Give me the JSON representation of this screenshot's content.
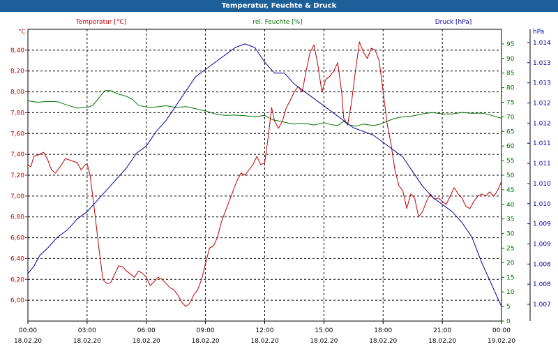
{
  "window": {
    "title": "Temperatur, Feuchte & Druck"
  },
  "colors": {
    "temperature": "#c00000",
    "humidity": "#007000",
    "pressure": "#000099",
    "title_bar": "#1d5f99"
  },
  "chart_data": {
    "type": "line",
    "title": "Temperatur, Feuchte & Druck",
    "grid": true,
    "x_ticks": [
      {
        "time": "00:00",
        "date": "18.02.20"
      },
      {
        "time": "03:00",
        "date": "18.02.20"
      },
      {
        "time": "06:00",
        "date": "18.02.20"
      },
      {
        "time": "09:00",
        "date": "18.02.20"
      },
      {
        "time": "12:00",
        "date": "18.02.20"
      },
      {
        "time": "15:00",
        "date": "18.02.20"
      },
      {
        "time": "18:00",
        "date": "18.02.20"
      },
      {
        "time": "21:00",
        "date": "18.02.20"
      },
      {
        "time": "00:00",
        "date": "19.02.20"
      }
    ],
    "x_range_hours": [
      0,
      24
    ],
    "axes": {
      "temperature": {
        "label": "Temperatur [°C]",
        "unit": "°C",
        "range": [
          5.8,
          8.6
        ],
        "ticks": [
          "6,00",
          "6,20",
          "6,40",
          "6,60",
          "6,80",
          "7,00",
          "7,20",
          "7,40",
          "7,60",
          "7,80",
          "8,00",
          "8,20",
          "8,40"
        ]
      },
      "humidity": {
        "label": "rel. Feuchte [%]",
        "unit": "%",
        "range": [
          0,
          100
        ],
        "ticks": [
          "0",
          "5",
          "10",
          "15",
          "20",
          "25",
          "30",
          "35",
          "40",
          "45",
          "50",
          "55",
          "60",
          "65",
          "70",
          "75",
          "80",
          "85",
          "90",
          "95"
        ]
      },
      "pressure": {
        "label": "Druck [hPa]",
        "unit": "hPa",
        "range": [
          1006.5,
          1014.5
        ],
        "ticks": [
          "1.007",
          "1.008",
          "1.008",
          "1.009",
          "1.009",
          "1.010",
          "1.010",
          "1.011",
          "1.011",
          "1.012",
          "1.012",
          "1.013",
          "1.013",
          "1.014"
        ]
      }
    },
    "series": [
      {
        "name": "Temperatur [°C]",
        "axis": "temperature",
        "points": [
          [
            0,
            7.3
          ],
          [
            0.15,
            7.28
          ],
          [
            0.3,
            7.38
          ],
          [
            0.6,
            7.4
          ],
          [
            0.8,
            7.42
          ],
          [
            1.0,
            7.35
          ],
          [
            1.2,
            7.25
          ],
          [
            1.4,
            7.22
          ],
          [
            1.7,
            7.3
          ],
          [
            1.9,
            7.36
          ],
          [
            2.2,
            7.34
          ],
          [
            2.5,
            7.32
          ],
          [
            2.7,
            7.25
          ],
          [
            2.9,
            7.3
          ],
          [
            3.0,
            7.31
          ],
          [
            3.15,
            7.2
          ],
          [
            3.35,
            6.9
          ],
          [
            3.6,
            6.5
          ],
          [
            3.8,
            6.2
          ],
          [
            4.0,
            6.16
          ],
          [
            4.2,
            6.17
          ],
          [
            4.4,
            6.25
          ],
          [
            4.6,
            6.33
          ],
          [
            4.8,
            6.32
          ],
          [
            5.0,
            6.28
          ],
          [
            5.2,
            6.25
          ],
          [
            5.4,
            6.22
          ],
          [
            5.6,
            6.28
          ],
          [
            5.8,
            6.26
          ],
          [
            6.0,
            6.22
          ],
          [
            6.2,
            6.14
          ],
          [
            6.4,
            6.18
          ],
          [
            6.6,
            6.22
          ],
          [
            6.8,
            6.2
          ],
          [
            7.0,
            6.16
          ],
          [
            7.2,
            6.12
          ],
          [
            7.4,
            6.1
          ],
          [
            7.6,
            6.05
          ],
          [
            7.8,
            5.98
          ],
          [
            8.0,
            5.94
          ],
          [
            8.2,
            5.97
          ],
          [
            8.4,
            6.05
          ],
          [
            8.6,
            6.1
          ],
          [
            8.8,
            6.2
          ],
          [
            9.0,
            6.35
          ],
          [
            9.2,
            6.5
          ],
          [
            9.4,
            6.52
          ],
          [
            9.6,
            6.6
          ],
          [
            9.8,
            6.75
          ],
          [
            10.0,
            6.85
          ],
          [
            10.2,
            6.95
          ],
          [
            10.4,
            7.05
          ],
          [
            10.6,
            7.15
          ],
          [
            10.8,
            7.22
          ],
          [
            11.0,
            7.2
          ],
          [
            11.2,
            7.25
          ],
          [
            11.4,
            7.3
          ],
          [
            11.6,
            7.38
          ],
          [
            11.8,
            7.3
          ],
          [
            12.0,
            7.32
          ],
          [
            12.2,
            7.6
          ],
          [
            12.35,
            7.85
          ],
          [
            12.5,
            7.72
          ],
          [
            12.7,
            7.65
          ],
          [
            12.9,
            7.72
          ],
          [
            13.1,
            7.85
          ],
          [
            13.3,
            7.92
          ],
          [
            13.5,
            8.0
          ],
          [
            13.7,
            8.05
          ],
          [
            13.9,
            8.0
          ],
          [
            14.1,
            8.2
          ],
          [
            14.3,
            8.38
          ],
          [
            14.5,
            8.45
          ],
          [
            14.7,
            8.25
          ],
          [
            14.9,
            8.0
          ],
          [
            15.1,
            8.12
          ],
          [
            15.3,
            8.15
          ],
          [
            15.5,
            8.2
          ],
          [
            15.7,
            8.28
          ],
          [
            15.9,
            8.0
          ],
          [
            16.0,
            7.75
          ],
          [
            16.2,
            7.68
          ],
          [
            16.4,
            7.9
          ],
          [
            16.6,
            8.2
          ],
          [
            16.8,
            8.48
          ],
          [
            17.0,
            8.38
          ],
          [
            17.2,
            8.32
          ],
          [
            17.4,
            8.42
          ],
          [
            17.6,
            8.4
          ],
          [
            17.8,
            8.3
          ],
          [
            18.0,
            8.0
          ],
          [
            18.2,
            7.7
          ],
          [
            18.4,
            7.5
          ],
          [
            18.6,
            7.25
          ],
          [
            18.8,
            7.1
          ],
          [
            19.0,
            7.05
          ],
          [
            19.2,
            6.88
          ],
          [
            19.4,
            7.02
          ],
          [
            19.6,
            6.98
          ],
          [
            19.8,
            6.8
          ],
          [
            20.0,
            6.85
          ],
          [
            20.2,
            6.95
          ],
          [
            20.4,
            7.02
          ],
          [
            20.6,
            6.97
          ],
          [
            20.8,
            6.98
          ],
          [
            21.0,
            6.95
          ],
          [
            21.2,
            6.92
          ],
          [
            21.4,
            7.0
          ],
          [
            21.6,
            7.08
          ],
          [
            21.8,
            7.02
          ],
          [
            22.0,
            6.98
          ],
          [
            22.2,
            6.9
          ],
          [
            22.4,
            6.88
          ],
          [
            22.6,
            6.95
          ],
          [
            22.8,
            7.0
          ],
          [
            23.0,
            7.02
          ],
          [
            23.2,
            7.0
          ],
          [
            23.4,
            7.04
          ],
          [
            23.6,
            7.0
          ],
          [
            23.8,
            7.05
          ],
          [
            24.0,
            7.14
          ]
        ]
      },
      {
        "name": "rel. Feuchte [%]",
        "axis": "humidity",
        "points": [
          [
            0,
            75.5
          ],
          [
            0.5,
            75
          ],
          [
            1.0,
            75.3
          ],
          [
            1.5,
            75.2
          ],
          [
            2.0,
            74
          ],
          [
            2.5,
            73
          ],
          [
            3.0,
            73.2
          ],
          [
            3.3,
            74
          ],
          [
            3.6,
            76.5
          ],
          [
            3.9,
            79
          ],
          [
            4.2,
            79
          ],
          [
            4.5,
            78
          ],
          [
            5.0,
            77
          ],
          [
            5.3,
            76
          ],
          [
            5.6,
            74
          ],
          [
            5.9,
            73.5
          ],
          [
            6.2,
            73.2
          ],
          [
            6.5,
            73.4
          ],
          [
            7.0,
            73.8
          ],
          [
            7.5,
            73.2
          ],
          [
            8.0,
            73.5
          ],
          [
            8.5,
            72.8
          ],
          [
            9.0,
            72
          ],
          [
            9.5,
            71
          ],
          [
            10.0,
            70.5
          ],
          [
            10.5,
            70.6
          ],
          [
            11.0,
            70.4
          ],
          [
            11.5,
            70
          ],
          [
            12.0,
            70.5
          ],
          [
            12.4,
            69
          ],
          [
            12.8,
            68.5
          ],
          [
            13.1,
            68
          ],
          [
            13.5,
            67.5
          ],
          [
            14.0,
            67.8
          ],
          [
            14.5,
            67.2
          ],
          [
            15.0,
            68
          ],
          [
            15.4,
            67.3
          ],
          [
            15.7,
            67
          ],
          [
            16.0,
            68.5
          ],
          [
            16.3,
            67.2
          ],
          [
            16.6,
            66.8
          ],
          [
            17.0,
            67.5
          ],
          [
            17.5,
            67
          ],
          [
            17.8,
            67.4
          ],
          [
            18.2,
            68.5
          ],
          [
            18.6,
            69.5
          ],
          [
            19.0,
            70
          ],
          [
            19.5,
            70.3
          ],
          [
            20.0,
            71
          ],
          [
            20.5,
            71.5
          ],
          [
            21.0,
            71
          ],
          [
            21.5,
            71
          ],
          [
            22.0,
            71.5
          ],
          [
            22.5,
            71.2
          ],
          [
            23.0,
            71.3
          ],
          [
            23.5,
            70.5
          ],
          [
            24.0,
            69.5
          ]
        ]
      },
      {
        "name": "Druck [hPa]",
        "axis": "pressure",
        "points": [
          [
            0,
            1007.8
          ],
          [
            0.3,
            1008.0
          ],
          [
            0.6,
            1008.3
          ],
          [
            1.0,
            1008.5
          ],
          [
            1.5,
            1008.8
          ],
          [
            2.0,
            1009.0
          ],
          [
            2.5,
            1009.3
          ],
          [
            3.0,
            1009.5
          ],
          [
            3.5,
            1009.8
          ],
          [
            4.0,
            1010.1
          ],
          [
            4.5,
            1010.4
          ],
          [
            5.0,
            1010.7
          ],
          [
            5.5,
            1011.1
          ],
          [
            6.0,
            1011.3
          ],
          [
            6.5,
            1011.7
          ],
          [
            7.0,
            1012.0
          ],
          [
            7.5,
            1012.4
          ],
          [
            8.0,
            1012.8
          ],
          [
            8.5,
            1013.2
          ],
          [
            9.0,
            1013.4
          ],
          [
            9.5,
            1013.6
          ],
          [
            10.0,
            1013.8
          ],
          [
            10.5,
            1014.0
          ],
          [
            11.0,
            1014.1
          ],
          [
            11.5,
            1014.0
          ],
          [
            12.0,
            1013.6
          ],
          [
            12.5,
            1013.3
          ],
          [
            13.0,
            1013.3
          ],
          [
            13.5,
            1013.0
          ],
          [
            14.0,
            1012.8
          ],
          [
            14.5,
            1012.6
          ],
          [
            15.0,
            1012.4
          ],
          [
            15.5,
            1012.2
          ],
          [
            16.0,
            1012.0
          ],
          [
            16.5,
            1011.8
          ],
          [
            17.0,
            1011.7
          ],
          [
            17.5,
            1011.6
          ],
          [
            18.0,
            1011.4
          ],
          [
            18.5,
            1011.2
          ],
          [
            19.0,
            1011.0
          ],
          [
            19.5,
            1010.6
          ],
          [
            20.0,
            1010.2
          ],
          [
            20.5,
            1009.9
          ],
          [
            21.0,
            1009.7
          ],
          [
            21.5,
            1009.5
          ],
          [
            22.0,
            1009.2
          ],
          [
            22.5,
            1008.8
          ],
          [
            23.0,
            1008.1
          ],
          [
            23.5,
            1007.5
          ],
          [
            24.0,
            1006.9
          ]
        ]
      }
    ]
  }
}
